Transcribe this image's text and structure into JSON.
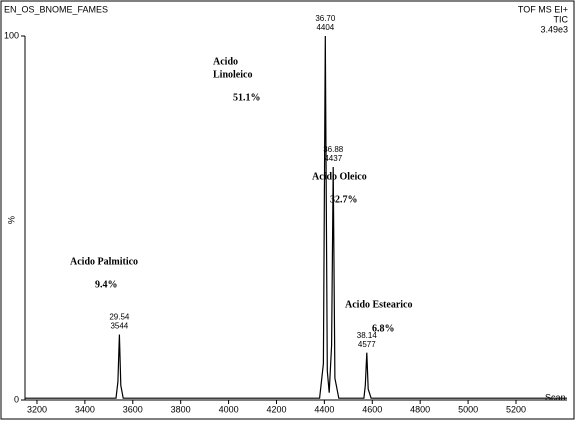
{
  "chart_data": {
    "type": "line",
    "title": "EN_OS_BNOME_FAMES",
    "instrument": [
      "TOF MS EI+",
      "TIC",
      "3.49e3"
    ],
    "x_label": "Scan",
    "y_label": "%",
    "xlim": [
      3150,
      5413
    ],
    "ylim": [
      0,
      100
    ],
    "xticks": [
      3200,
      3400,
      3600,
      3800,
      4000,
      4200,
      4400,
      4600,
      4800,
      5000,
      5200
    ],
    "yticks": [
      0,
      100
    ],
    "color": "#000000",
    "x": [
      3150,
      3530,
      3538,
      3544,
      3550,
      3560,
      4380,
      4396,
      4404,
      4412,
      4420,
      4430,
      4437,
      4444,
      4460,
      4565,
      4571,
      4577,
      4583,
      4595,
      5413
    ],
    "values": [
      0.5,
      0.5,
      5,
      18,
      4,
      0.5,
      0.5,
      10,
      100,
      8,
      2,
      15,
      64,
      6,
      0.5,
      0.5,
      4,
      13,
      3,
      0.5,
      0.5
    ],
    "peaks": [
      {
        "rt": "29.54",
        "scan": 3544,
        "height": 18,
        "name": [
          "Acido Palmitico"
        ],
        "area": "9.4%"
      },
      {
        "rt": "36.70",
        "scan": 4404,
        "height": 100,
        "name": [
          "Acido",
          "Linoleico"
        ],
        "area": "51.1%"
      },
      {
        "rt": "36.88",
        "scan": 4437,
        "height": 64,
        "name": [
          "Acido Oleico"
        ],
        "area": "32.7%"
      },
      {
        "rt": "38.14",
        "scan": 4577,
        "height": 13,
        "name": [
          "Acido Estearico"
        ],
        "area": "6.8%"
      }
    ]
  }
}
